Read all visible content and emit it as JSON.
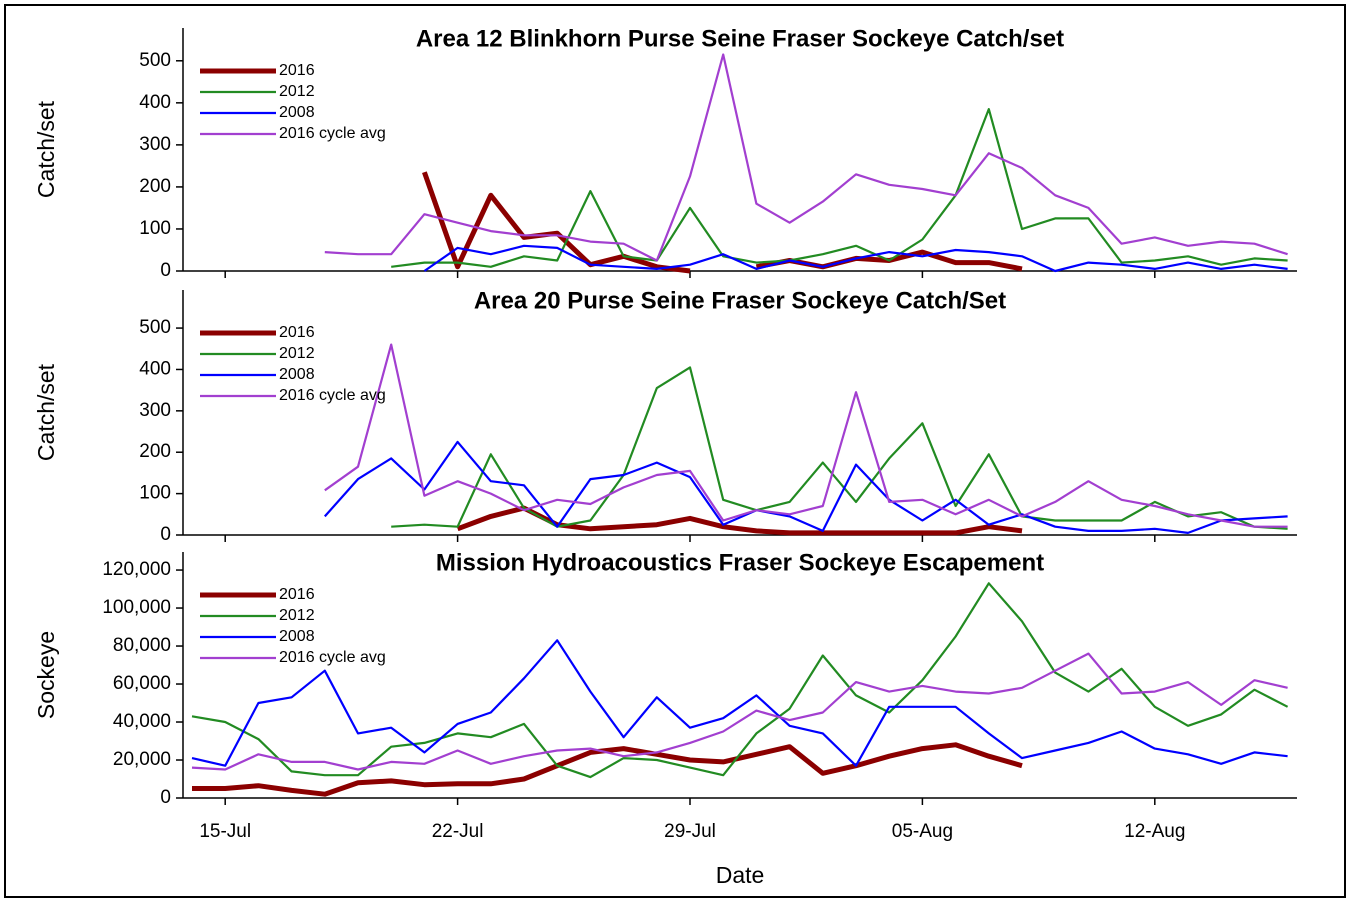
{
  "chart_data": [
    {
      "type": "line",
      "title": "Area 12 Blinkhorn Purse Seine Fraser Sockeye Catch/set",
      "y_label": "Catch/set",
      "ylim": [
        0,
        578
      ],
      "yticks": [
        0,
        100,
        200,
        300,
        400,
        500
      ],
      "legend": "upper left",
      "series": [
        {
          "name": "2016",
          "color": "#8b0000",
          "values": [
            null,
            null,
            null,
            null,
            null,
            null,
            null,
            235,
            10,
            180,
            80,
            90,
            15,
            35,
            10,
            0,
            null,
            10,
            25,
            10,
            30,
            25,
            45,
            20,
            20,
            5,
            null,
            null,
            null,
            null,
            null,
            null,
            null,
            null
          ]
        },
        {
          "name": "2012",
          "color": "#228b22",
          "values": [
            null,
            null,
            null,
            null,
            null,
            null,
            10,
            20,
            20,
            10,
            35,
            25,
            190,
            35,
            25,
            150,
            35,
            20,
            25,
            40,
            60,
            25,
            75,
            180,
            385,
            100,
            125,
            125,
            20,
            25,
            35,
            15,
            30,
            25
          ]
        },
        {
          "name": "2008",
          "color": "#0000ff",
          "values": [
            null,
            null,
            null,
            null,
            null,
            null,
            null,
            0,
            55,
            40,
            60,
            55,
            15,
            10,
            5,
            15,
            40,
            5,
            25,
            10,
            30,
            45,
            35,
            50,
            45,
            35,
            0,
            20,
            15,
            5,
            20,
            5,
            15,
            5
          ]
        },
        {
          "name": "2016 cycle avg",
          "color": "#a23fd0",
          "values": [
            null,
            null,
            null,
            null,
            45,
            40,
            40,
            135,
            115,
            95,
            85,
            85,
            70,
            65,
            25,
            225,
            515,
            160,
            115,
            165,
            230,
            205,
            195,
            180,
            280,
            245,
            180,
            150,
            65,
            80,
            60,
            70,
            65,
            40
          ]
        }
      ]
    },
    {
      "type": "line",
      "title": "Area 20 Purse Seine Fraser Sockeye Catch/Set",
      "y_label": "Catch/set",
      "ylim": [
        0,
        592
      ],
      "yticks": [
        0,
        100,
        200,
        300,
        400,
        500
      ],
      "legend": "upper left",
      "series": [
        {
          "name": "2016",
          "color": "#8b0000",
          "values": [
            null,
            null,
            null,
            null,
            null,
            null,
            null,
            null,
            15,
            45,
            65,
            25,
            15,
            20,
            25,
            40,
            20,
            10,
            5,
            5,
            5,
            5,
            5,
            5,
            20,
            10,
            null,
            null,
            null,
            null,
            null,
            null,
            null,
            null
          ]
        },
        {
          "name": "2012",
          "color": "#228b22",
          "values": [
            null,
            null,
            null,
            null,
            null,
            null,
            20,
            25,
            20,
            195,
            65,
            20,
            35,
            145,
            355,
            405,
            85,
            60,
            80,
            175,
            80,
            185,
            270,
            70,
            195,
            45,
            35,
            35,
            35,
            80,
            45,
            55,
            20,
            15
          ]
        },
        {
          "name": "2008",
          "color": "#0000ff",
          "values": [
            null,
            null,
            null,
            null,
            45,
            135,
            185,
            110,
            225,
            130,
            120,
            20,
            135,
            145,
            175,
            140,
            25,
            60,
            45,
            10,
            170,
            85,
            35,
            85,
            25,
            50,
            20,
            10,
            10,
            15,
            5,
            35,
            40,
            45
          ]
        },
        {
          "name": "2016 cycle avg",
          "color": "#a23fd0",
          "values": [
            null,
            null,
            null,
            null,
            108,
            165,
            460,
            95,
            130,
            100,
            60,
            85,
            75,
            115,
            145,
            155,
            35,
            60,
            50,
            70,
            345,
            80,
            85,
            50,
            85,
            45,
            80,
            130,
            85,
            70,
            50,
            35,
            20,
            20
          ]
        }
      ]
    },
    {
      "type": "line",
      "title": "Mission Hydroacoustics Fraser Sockeye Escapement",
      "y_label": "Sockeye",
      "x_label": "Date",
      "categories": [
        null,
        "15-Jul",
        null,
        null,
        null,
        null,
        null,
        null,
        "22-Jul",
        null,
        null,
        null,
        null,
        null,
        null,
        "29-Jul",
        null,
        null,
        null,
        null,
        null,
        null,
        "05-Aug",
        null,
        null,
        null,
        null,
        null,
        null,
        "12-Aug",
        null,
        null,
        null,
        null
      ],
      "ylim": [
        0,
        129500
      ],
      "yticks": [
        0,
        {
          "value": 20000,
          "label": "20,000"
        },
        {
          "value": 40000,
          "label": "40,000"
        },
        {
          "value": 60000,
          "label": "60,000"
        },
        {
          "value": 80000,
          "label": "80,000"
        },
        {
          "value": 100000,
          "label": "100,000"
        },
        {
          "value": 120000,
          "label": "120,000"
        }
      ],
      "legend": "upper left",
      "series": [
        {
          "name": "2016",
          "color": "#8b0000",
          "values": [
            5000,
            5000,
            6500,
            4000,
            2000,
            8000,
            9000,
            7000,
            7500,
            7500,
            10000,
            17000,
            24000,
            26000,
            23000,
            20000,
            19000,
            23000,
            27000,
            13000,
            17000,
            22000,
            26000,
            28000,
            22000,
            17000,
            null,
            null,
            null,
            null,
            null,
            null,
            null,
            null
          ]
        },
        {
          "name": "2012",
          "color": "#228b22",
          "values": [
            43000,
            40000,
            31000,
            14000,
            12000,
            12000,
            27000,
            29000,
            34000,
            32000,
            39000,
            17000,
            11000,
            21000,
            20000,
            16000,
            12000,
            34000,
            47000,
            75000,
            54000,
            45000,
            62000,
            85000,
            113000,
            93000,
            66000,
            56000,
            68000,
            48000,
            38000,
            44000,
            57000,
            48000
          ]
        },
        {
          "name": "2008",
          "color": "#0000ff",
          "values": [
            21000,
            17000,
            50000,
            53000,
            67000,
            34000,
            37000,
            24000,
            39000,
            45000,
            63000,
            83000,
            56000,
            32000,
            53000,
            37000,
            42000,
            54000,
            38000,
            34000,
            17000,
            48000,
            48000,
            48000,
            34000,
            21000,
            25000,
            29000,
            35000,
            26000,
            23000,
            18000,
            24000,
            22000
          ]
        },
        {
          "name": "2016 cycle avg",
          "color": "#a23fd0",
          "values": [
            16000,
            15000,
            23000,
            19000,
            19000,
            15000,
            19000,
            18000,
            25000,
            18000,
            22000,
            25000,
            26000,
            22000,
            24000,
            29000,
            35000,
            46000,
            41000,
            45000,
            61000,
            56000,
            59000,
            56000,
            55000,
            58000,
            67000,
            76000,
            55000,
            56000,
            61000,
            49000,
            62000,
            58000
          ]
        }
      ]
    }
  ]
}
